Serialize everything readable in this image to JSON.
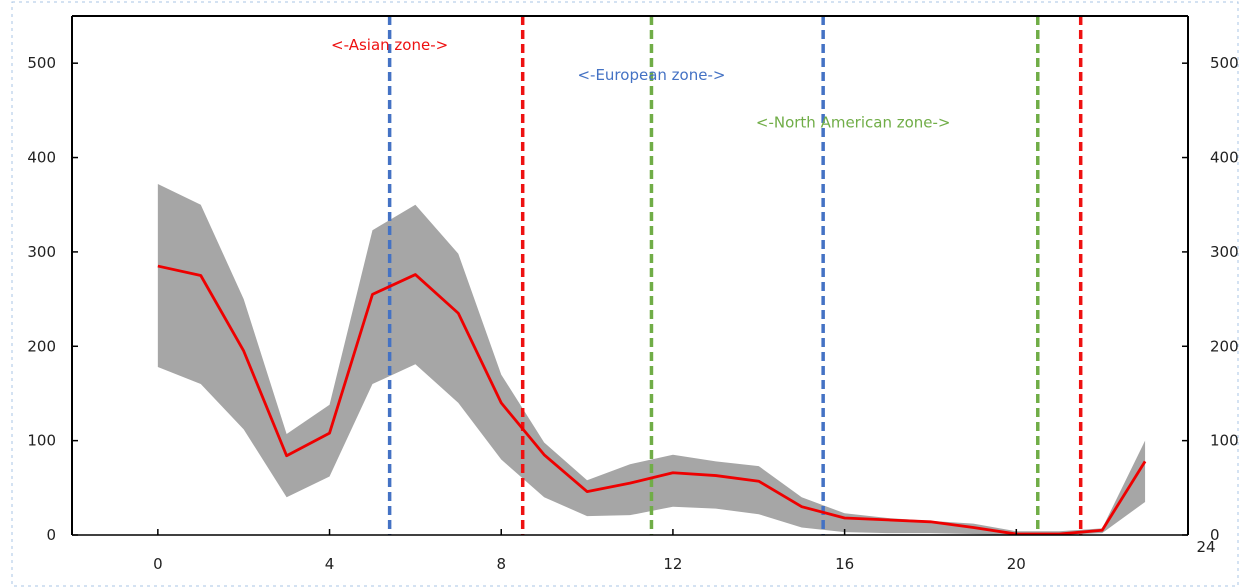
{
  "chart_data": {
    "type": "area",
    "title": "",
    "xlabel": "",
    "ylabel": "",
    "xlim": [
      -2,
      24
    ],
    "ylim": [
      0,
      550
    ],
    "x_ticks": [
      0,
      4,
      8,
      12,
      16,
      20,
      24
    ],
    "y_ticks": [
      0,
      100,
      200,
      300,
      400,
      500
    ],
    "x": [
      0,
      1,
      2,
      3,
      4,
      5,
      6,
      7,
      8,
      9,
      10,
      11,
      12,
      13,
      14,
      15,
      16,
      17,
      18,
      19,
      20,
      21,
      22,
      23
    ],
    "series": [
      {
        "kind": "band",
        "color": "#a6a6a6",
        "upper": [
          372,
          350,
          250,
          107,
          138,
          323,
          350,
          298,
          170,
          98,
          58,
          75,
          85,
          78,
          73,
          40,
          23,
          18,
          15,
          12,
          4,
          4,
          7,
          100
        ],
        "lower": [
          178,
          160,
          112,
          40,
          62,
          160,
          181,
          140,
          80,
          40,
          20,
          21,
          30,
          28,
          22,
          8,
          3,
          2,
          2,
          1,
          0,
          0,
          2,
          35
        ]
      },
      {
        "kind": "line",
        "color": "#ee0000",
        "values": [
          285,
          275,
          195,
          84,
          108,
          255,
          276,
          235,
          140,
          85,
          46,
          55,
          66,
          63,
          57,
          30,
          18,
          16,
          14,
          8,
          1,
          1,
          5,
          78
        ]
      }
    ],
    "vlines": [
      {
        "x": 5.4,
        "color": "#4472c4"
      },
      {
        "x": 8.5,
        "color": "#ee1111"
      },
      {
        "x": 11.5,
        "color": "#70ad47"
      },
      {
        "x": 15.5,
        "color": "#4472c4"
      },
      {
        "x": 20.5,
        "color": "#70ad47"
      },
      {
        "x": 21.5,
        "color": "#ee1111"
      }
    ],
    "annotations": [
      {
        "text": "<-Asian zone->",
        "x": 5.4,
        "y": 514,
        "color": "#ee1111"
      },
      {
        "text": "<-European zone->",
        "x": 11.5,
        "y": 482,
        "color": "#4472c4"
      },
      {
        "text": "<-North American zone->",
        "x": 16.2,
        "y": 432,
        "color": "#70ad47"
      }
    ],
    "axis_color": "#000000",
    "tick_label_color": "#222222",
    "border_color": "#a9c4e4"
  }
}
